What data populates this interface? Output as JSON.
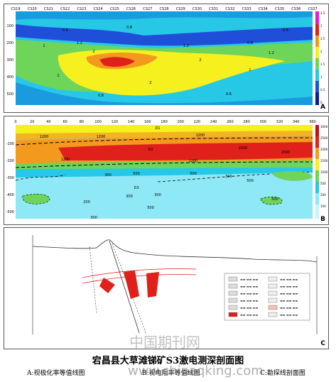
{
  "panel_a": {
    "label": "A",
    "stations": [
      "CS19",
      "CS20",
      "CS21",
      "CS22",
      "CS23",
      "CS24",
      "CS25",
      "CS26",
      "CS27",
      "CS28",
      "CS29",
      "CS30",
      "CS31",
      "CS32",
      "CS33",
      "CS34",
      "CS35",
      "CS36",
      "CS37"
    ],
    "depth_ticks": [
      "100",
      "200",
      "300",
      "400",
      "500"
    ],
    "contours": [
      "0.6",
      "0.8",
      "1",
      "1.2",
      "2",
      "2",
      "2",
      "1",
      "1",
      "0.8",
      "0.6",
      "0.6",
      "0.8",
      "1.2",
      "1.2"
    ],
    "scale": [
      "3.5",
      "3",
      "2.5",
      "2",
      "1.5",
      "1",
      "0.5",
      "0"
    ]
  },
  "distance_ticks": [
    "0",
    "20",
    "40",
    "60",
    "80",
    "100",
    "120",
    "140",
    "160",
    "180",
    "200",
    "220",
    "240",
    "260",
    "280",
    "300",
    "320",
    "340",
    "360"
  ],
  "panel_b": {
    "label": "B",
    "depth_ticks": [
      "-100",
      "-200",
      "-300",
      "-400",
      "-500"
    ],
    "labels": [
      "D1",
      "D2",
      "D3",
      "1200",
      "1200",
      "1200",
      "1200",
      "1200",
      "2000",
      "2000",
      "300",
      "500",
      "500",
      "300",
      "500",
      "300",
      "500",
      "300",
      "200",
      "300",
      "500"
    ],
    "scale": [
      "3000",
      "2500",
      "2000",
      "1500",
      "1000",
      "500",
      "200",
      "100"
    ]
  },
  "panel_c": {
    "label": "C",
    "legend_rows": [
      "▬▬ ▬▬ ▬▬",
      "▬▬ ▬▬ ▬▬",
      "▬▬ ▬▬ ▬▬",
      "▬▬ ▬▬ ▬▬",
      "▬▬ ▬▬ ▬▬",
      "▬▬ ▬▬ ▬▬"
    ]
  },
  "caption": "宕昌县大草滩锑矿S3激电测深剖面图",
  "subcaptions": [
    "A:视极化率等值线图",
    "B:视电阻率等值线图",
    "C:勘探线剖面图"
  ],
  "watermark": {
    "cn": "中国期刊网",
    "url": "www.chinaqking.com"
  },
  "colors": {
    "red": "#e0201a",
    "orange": "#f39a1e",
    "yellow": "#f5f01e",
    "green": "#6fd45a",
    "cyan": "#3ad0e8",
    "blue": "#1f4fd8"
  }
}
